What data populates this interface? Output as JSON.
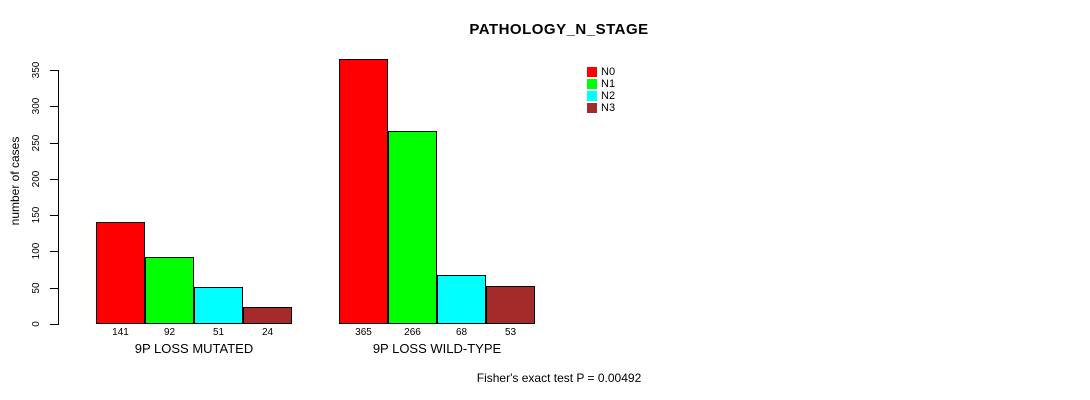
{
  "chart_data": {
    "type": "bar",
    "title": "PATHOLOGY_N_STAGE",
    "ylabel": "number of cases",
    "ylim": [
      0,
      350
    ],
    "yticks": [
      0,
      50,
      100,
      150,
      200,
      250,
      300,
      350
    ],
    "grid": false,
    "legend_position": "top-right",
    "series": [
      {
        "name": "N0",
        "color": "#ff0000"
      },
      {
        "name": "N1",
        "color": "#00ff00"
      },
      {
        "name": "N2",
        "color": "#00ffff"
      },
      {
        "name": "N3",
        "color": "#a52a2a"
      }
    ],
    "groups": [
      {
        "label": "9P LOSS MUTATED",
        "values": [
          141,
          92,
          51,
          24
        ]
      },
      {
        "label": "9P LOSS WILD-TYPE",
        "values": [
          365,
          266,
          68,
          53
        ]
      }
    ],
    "footnote": "Fisher's exact test P = 0.00492"
  },
  "colors": {
    "background": "#ffffff",
    "axis": "#000000",
    "text": "#000000",
    "bar_border": "#000000"
  }
}
